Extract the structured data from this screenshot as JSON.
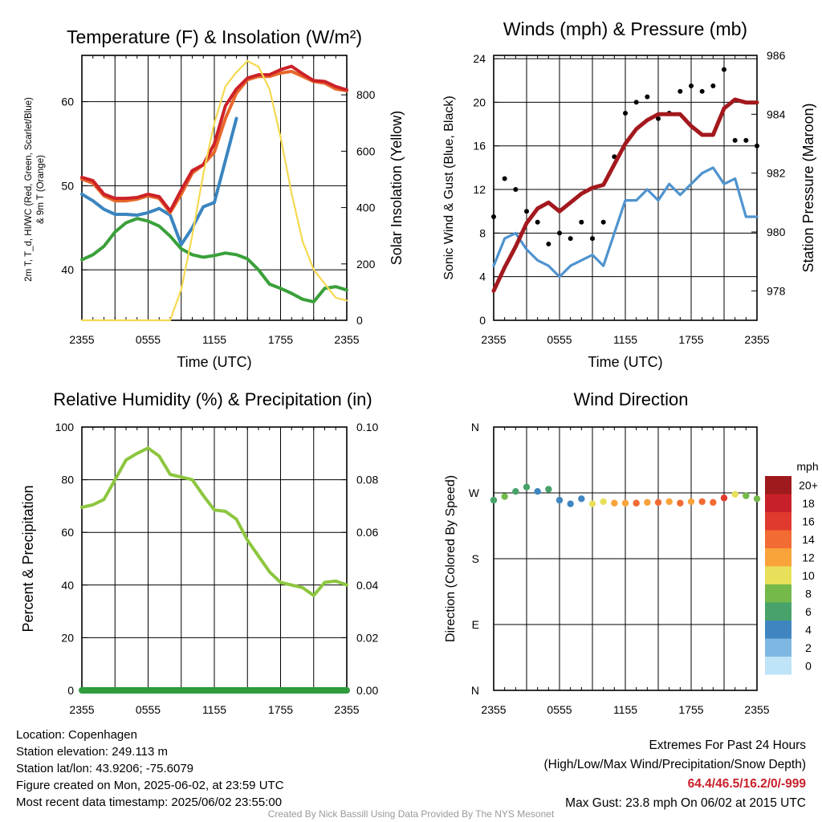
{
  "time_ticks": [
    "2355",
    "0555",
    "1155",
    "1755",
    "2355"
  ],
  "chart_data": [
    {
      "type": "line",
      "title": "Temperature (F) & Insolation (W/m²)",
      "xlabel": "Time (UTC)",
      "ylabel": "2m T, T_d, HI/WC (Red, Green, Scarlet/Blue)",
      "ylabel2": "& 9m T (Orange)",
      "y2label": "Solar Insolation (Yellow)",
      "x_hours": [
        0,
        1,
        2,
        3,
        4,
        5,
        6,
        7,
        8,
        9,
        10,
        11,
        12,
        13,
        14,
        15,
        16,
        17,
        18,
        19,
        20,
        21,
        22,
        23,
        24
      ],
      "ylim": [
        34,
        65.5
      ],
      "yticks": [
        40,
        50,
        60
      ],
      "y2lim": [
        0,
        940
      ],
      "y2ticks": [
        0,
        200,
        400,
        600,
        800
      ],
      "grid": true,
      "series": [
        {
          "color": "#3a85c0",
          "axis": "left",
          "values": [
            49,
            48.2,
            47.2,
            46.6,
            46.6,
            46.5,
            46.8,
            47.3,
            46.5,
            43,
            45,
            47.5,
            48,
            53,
            58,
            null,
            null,
            null,
            null,
            null,
            null,
            null,
            null,
            null,
            null
          ]
        },
        {
          "color": "#e8682b",
          "axis": "left",
          "values": [
            50.8,
            50.3,
            48.8,
            48.2,
            48.2,
            48.4,
            48.8,
            48.5,
            46.8,
            49,
            51.5,
            52.5,
            54,
            58,
            61,
            62.6,
            63,
            63,
            63.4,
            63.6,
            63,
            62.4,
            62.2,
            61.5,
            61.3
          ]
        },
        {
          "color": "#cc2228",
          "axis": "left",
          "values": [
            51,
            50.6,
            49,
            48.5,
            48.5,
            48.6,
            49,
            48.7,
            47,
            49.5,
            51.8,
            52.5,
            55,
            59.5,
            61.5,
            62.8,
            63.2,
            63.2,
            63.8,
            64.2,
            63.3,
            62.5,
            62.4,
            61.8,
            61.4
          ]
        },
        {
          "color": "#3aa03a",
          "axis": "left",
          "values": [
            41.2,
            41.8,
            42.8,
            44.5,
            45.6,
            46.1,
            45.8,
            45.2,
            44,
            42.5,
            41.8,
            41.5,
            41.7,
            42,
            41.8,
            41.3,
            40,
            38.3,
            37.8,
            37.2,
            36.5,
            36.2,
            37.8,
            38,
            37.6
          ]
        },
        {
          "color": "#f5d950",
          "axis": "left",
          "y2values": [
            0,
            0,
            0,
            0,
            0,
            0,
            0,
            0,
            0,
            110,
            300,
            520,
            700,
            830,
            880,
            920,
            900,
            820,
            650,
            450,
            280,
            180,
            130,
            80,
            70
          ]
        }
      ]
    },
    {
      "type": "line",
      "title": "Winds (mph) & Pressure (mb)",
      "xlabel": "Time (UTC)",
      "ylabel": "Sonic Wind & Gust (Blue, Black)",
      "y2label": "Station Pressure (Maroon)",
      "x_hours": [
        0,
        1,
        2,
        3,
        4,
        5,
        6,
        7,
        8,
        9,
        10,
        11,
        12,
        13,
        14,
        15,
        16,
        17,
        18,
        19,
        20,
        21,
        22,
        23,
        24
      ],
      "ylim": [
        0,
        24.3
      ],
      "yticks": [
        0,
        4,
        8,
        12,
        16,
        20,
        24
      ],
      "y2lim": [
        977,
        986
      ],
      "y2ticks": [
        978,
        980,
        982,
        984,
        986
      ],
      "grid": true,
      "series": [
        {
          "color": "#4f93cf",
          "axis": "left",
          "values": [
            5,
            7.5,
            8,
            6.5,
            5.5,
            5,
            4,
            5,
            5.5,
            6,
            5,
            8,
            11,
            11,
            12,
            11,
            12.5,
            11.5,
            12.5,
            13.5,
            14,
            12.5,
            13,
            9.5,
            9.5
          ]
        },
        {
          "color": "#000000",
          "axis": "left",
          "values": [
            9.5,
            13,
            12,
            10,
            9,
            7,
            8,
            7.5,
            9,
            7.5,
            9,
            15,
            19,
            20,
            20.5,
            18.5,
            19,
            21,
            21.5,
            21,
            21.5,
            23,
            16.5,
            16.5,
            16
          ]
        },
        {
          "color": "#a3191e",
          "axis": "right",
          "values": [
            978,
            978.8,
            979.5,
            980.3,
            980.8,
            981,
            980.7,
            981,
            981.3,
            981.5,
            981.6,
            982.3,
            983,
            983.5,
            983.8,
            984,
            984,
            984,
            983.6,
            983.3,
            983.3,
            984.2,
            984.5,
            984.4,
            984.4
          ]
        }
      ]
    },
    {
      "type": "line",
      "title": "Relative Humidity (%) & Precipitation (in)",
      "xlabel": "",
      "ylabel": "Percent & Precipitation",
      "x_hours": [
        0,
        1,
        2,
        3,
        4,
        5,
        6,
        7,
        8,
        9,
        10,
        11,
        12,
        13,
        14,
        15,
        16,
        17,
        18,
        19,
        20,
        21,
        22,
        23,
        24
      ],
      "ylim": [
        0,
        100
      ],
      "yticks": [
        0,
        20,
        40,
        60,
        80,
        100
      ],
      "y2lim": [
        0,
        0.1
      ],
      "y2ticks": [
        "0.00",
        "0.02",
        "0.04",
        "0.06",
        "0.08",
        "0.10"
      ],
      "grid": true,
      "series": [
        {
          "color": "#8dc63f",
          "axis": "left",
          "values": [
            69.5,
            70.5,
            72.5,
            80,
            87.5,
            90,
            92,
            89,
            82,
            81,
            80,
            74,
            68.5,
            68,
            65,
            57,
            51,
            45,
            41,
            40,
            39,
            36,
            41,
            41.5,
            40
          ]
        },
        {
          "color": "#2e9c3b",
          "axis": "right",
          "values": [
            0,
            0,
            0,
            0,
            0,
            0,
            0,
            0,
            0,
            0,
            0,
            0,
            0,
            0,
            0,
            0,
            0,
            0,
            0,
            0,
            0,
            0,
            0,
            0,
            0
          ]
        }
      ]
    },
    {
      "type": "scatter",
      "title": "Wind Direction",
      "xlabel": "",
      "ylabel": "Direction (Colored By Speed)",
      "ylim": [
        0,
        360
      ],
      "yticks": [
        "N",
        "E",
        "S",
        "W",
        "N"
      ],
      "grid": true,
      "legend_title": "mph",
      "legend_labels": [
        "20+",
        "18",
        "16",
        "14",
        "12",
        "10",
        "8",
        "6",
        "4",
        "2",
        "0"
      ],
      "legend_colors": [
        "#9e1a1d",
        "#c8202a",
        "#e03a2e",
        "#f26b33",
        "#f9a33b",
        "#e8e05a",
        "#74b94a",
        "#48a36a",
        "#3f86c0",
        "#7fb7e3",
        "#bfe3f7"
      ],
      "x_hours": [
        0,
        1,
        2,
        3,
        4,
        5,
        6,
        7,
        8,
        9,
        10,
        11,
        12,
        13,
        14,
        15,
        16,
        17,
        18,
        19,
        20,
        21,
        22,
        23,
        24
      ],
      "directions": [
        260,
        265,
        272,
        278,
        272,
        275,
        260,
        255,
        262,
        255,
        258,
        256,
        256,
        256,
        257,
        257,
        258,
        256,
        258,
        258,
        257,
        263,
        268,
        266,
        262
      ],
      "speeds": [
        6,
        7,
        6,
        5,
        4,
        5,
        3,
        3,
        4,
        9,
        10,
        11,
        12,
        13,
        12,
        13,
        12,
        14,
        11,
        14,
        13,
        15,
        9,
        8,
        7
      ]
    }
  ],
  "meta": {
    "location": "Location: Copenhagen",
    "elevation": "Station elevation: 249.113 m",
    "latlon": "Station lat/lon: 43.9206; -75.6079",
    "created": "Figure created on Mon, 2025-06-02, at 23:59 UTC",
    "recent": "Most recent data timestamp: 2025/06/02 23:55:00"
  },
  "extremes": {
    "title": "Extremes For Past 24 Hours",
    "subtitle": "(High/Low/Max Wind/Precipitation/Snow Depth)",
    "values": "64.4/46.5/16.2/0/-999",
    "gust": "Max Gust: 23.8 mph On 06/02 at 2015 UTC"
  },
  "credit": "Created By Nick Bassill Using Data Provided By The NYS Mesonet"
}
